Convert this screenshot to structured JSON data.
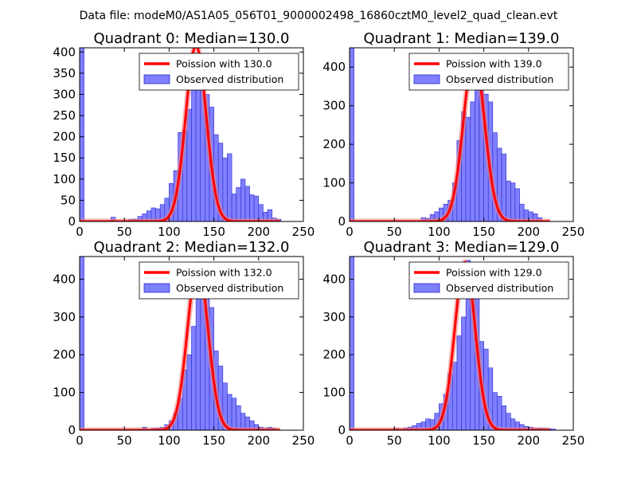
{
  "figure": {
    "suptitle": "Data file: modeM0/AS1A05_056T01_9000002498_16860cztM0_level2_quad_clean.evt"
  },
  "style": {
    "bar_fill": "#7f7fff",
    "bar_edge": "#2a2ad0",
    "poisson_color": "#ff0000",
    "poisson_halo": "#f08080"
  },
  "chart_data": [
    {
      "type": "bar",
      "title": "Quadrant 0: Median=130.0",
      "median": 130.0,
      "xlim": [
        0,
        250
      ],
      "ylim": [
        0,
        410
      ],
      "xticks": [
        0,
        50,
        100,
        150,
        200,
        250
      ],
      "yticks": [
        0,
        50,
        100,
        150,
        200,
        250,
        300,
        350,
        400
      ],
      "bin_width": 5,
      "poisson_peak": 415,
      "legend": [
        "Poission with 130.0",
        "Observed distribution"
      ],
      "bins": [
        {
          "x": 0,
          "v": 410
        },
        {
          "x": 35,
          "v": 10
        },
        {
          "x": 55,
          "v": 5
        },
        {
          "x": 60,
          "v": 6
        },
        {
          "x": 65,
          "v": 12
        },
        {
          "x": 70,
          "v": 18
        },
        {
          "x": 75,
          "v": 25
        },
        {
          "x": 80,
          "v": 32
        },
        {
          "x": 85,
          "v": 30
        },
        {
          "x": 90,
          "v": 40
        },
        {
          "x": 95,
          "v": 55
        },
        {
          "x": 100,
          "v": 90
        },
        {
          "x": 105,
          "v": 120
        },
        {
          "x": 110,
          "v": 210
        },
        {
          "x": 115,
          "v": 215
        },
        {
          "x": 120,
          "v": 265
        },
        {
          "x": 125,
          "v": 310
        },
        {
          "x": 130,
          "v": 365
        },
        {
          "x": 135,
          "v": 340
        },
        {
          "x": 140,
          "v": 300
        },
        {
          "x": 145,
          "v": 270
        },
        {
          "x": 150,
          "v": 205
        },
        {
          "x": 155,
          "v": 185
        },
        {
          "x": 160,
          "v": 150
        },
        {
          "x": 165,
          "v": 160
        },
        {
          "x": 170,
          "v": 65
        },
        {
          "x": 175,
          "v": 80
        },
        {
          "x": 180,
          "v": 100
        },
        {
          "x": 185,
          "v": 83
        },
        {
          "x": 190,
          "v": 63
        },
        {
          "x": 195,
          "v": 60
        },
        {
          "x": 200,
          "v": 40
        },
        {
          "x": 205,
          "v": 22
        },
        {
          "x": 210,
          "v": 28
        },
        {
          "x": 215,
          "v": 8
        },
        {
          "x": 220,
          "v": 5
        }
      ]
    },
    {
      "type": "bar",
      "title": "Quadrant 1: Median=139.0",
      "median": 139.0,
      "xlim": [
        0,
        250
      ],
      "ylim": [
        0,
        450
      ],
      "xticks": [
        0,
        50,
        100,
        150,
        200,
        250
      ],
      "yticks": [
        0,
        100,
        200,
        300,
        400
      ],
      "bin_width": 5,
      "poisson_peak": 430,
      "legend": [
        "Poission with 139.0",
        "Observed distribution"
      ],
      "bins": [
        {
          "x": 0,
          "v": 450
        },
        {
          "x": 80,
          "v": 10
        },
        {
          "x": 85,
          "v": 8
        },
        {
          "x": 90,
          "v": 18
        },
        {
          "x": 95,
          "v": 25
        },
        {
          "x": 100,
          "v": 35
        },
        {
          "x": 105,
          "v": 45
        },
        {
          "x": 110,
          "v": 55
        },
        {
          "x": 115,
          "v": 100
        },
        {
          "x": 120,
          "v": 210
        },
        {
          "x": 125,
          "v": 285
        },
        {
          "x": 130,
          "v": 270
        },
        {
          "x": 135,
          "v": 310
        },
        {
          "x": 140,
          "v": 420
        },
        {
          "x": 145,
          "v": 410
        },
        {
          "x": 150,
          "v": 330
        },
        {
          "x": 155,
          "v": 310
        },
        {
          "x": 160,
          "v": 230
        },
        {
          "x": 165,
          "v": 190
        },
        {
          "x": 170,
          "v": 175
        },
        {
          "x": 175,
          "v": 105
        },
        {
          "x": 180,
          "v": 100
        },
        {
          "x": 185,
          "v": 85
        },
        {
          "x": 190,
          "v": 45
        },
        {
          "x": 195,
          "v": 30
        },
        {
          "x": 200,
          "v": 25
        },
        {
          "x": 205,
          "v": 20
        },
        {
          "x": 210,
          "v": 10
        }
      ]
    },
    {
      "type": "bar",
      "title": "Quadrant 2: Median=132.0",
      "median": 132.0,
      "xlim": [
        0,
        250
      ],
      "ylim": [
        0,
        460
      ],
      "xticks": [
        0,
        50,
        100,
        150,
        200,
        250
      ],
      "yticks": [
        0,
        100,
        200,
        300,
        400
      ],
      "bin_width": 5,
      "poisson_peak": 440,
      "legend": [
        "Poission with 132.0",
        "Observed distribution"
      ],
      "bins": [
        {
          "x": 0,
          "v": 460
        },
        {
          "x": 70,
          "v": 8
        },
        {
          "x": 80,
          "v": 5
        },
        {
          "x": 85,
          "v": 6
        },
        {
          "x": 90,
          "v": 8
        },
        {
          "x": 95,
          "v": 15
        },
        {
          "x": 100,
          "v": 25
        },
        {
          "x": 105,
          "v": 45
        },
        {
          "x": 110,
          "v": 85
        },
        {
          "x": 115,
          "v": 160
        },
        {
          "x": 120,
          "v": 200
        },
        {
          "x": 125,
          "v": 275
        },
        {
          "x": 130,
          "v": 390
        },
        {
          "x": 135,
          "v": 410
        },
        {
          "x": 140,
          "v": 380
        },
        {
          "x": 145,
          "v": 325
        },
        {
          "x": 150,
          "v": 210
        },
        {
          "x": 155,
          "v": 170
        },
        {
          "x": 160,
          "v": 125
        },
        {
          "x": 165,
          "v": 95
        },
        {
          "x": 170,
          "v": 85
        },
        {
          "x": 175,
          "v": 65
        },
        {
          "x": 180,
          "v": 45
        },
        {
          "x": 185,
          "v": 35
        },
        {
          "x": 190,
          "v": 25
        },
        {
          "x": 195,
          "v": 15
        },
        {
          "x": 200,
          "v": 8
        },
        {
          "x": 205,
          "v": 5
        },
        {
          "x": 210,
          "v": 8
        },
        {
          "x": 215,
          "v": 5
        }
      ]
    },
    {
      "type": "bar",
      "title": "Quadrant 3: Median=129.0",
      "median": 129.0,
      "xlim": [
        0,
        250
      ],
      "ylim": [
        0,
        460
      ],
      "xticks": [
        0,
        50,
        100,
        150,
        200,
        250
      ],
      "yticks": [
        0,
        100,
        200,
        300,
        400
      ],
      "bin_width": 5,
      "poisson_peak": 445,
      "legend": [
        "Poission with 129.0",
        "Observed distribution"
      ],
      "bins": [
        {
          "x": 0,
          "v": 460
        },
        {
          "x": 50,
          "v": 5
        },
        {
          "x": 60,
          "v": 6
        },
        {
          "x": 65,
          "v": 8
        },
        {
          "x": 70,
          "v": 12
        },
        {
          "x": 75,
          "v": 18
        },
        {
          "x": 80,
          "v": 22
        },
        {
          "x": 85,
          "v": 30
        },
        {
          "x": 90,
          "v": 28
        },
        {
          "x": 95,
          "v": 45
        },
        {
          "x": 100,
          "v": 70
        },
        {
          "x": 105,
          "v": 95
        },
        {
          "x": 110,
          "v": 150
        },
        {
          "x": 115,
          "v": 180
        },
        {
          "x": 120,
          "v": 250
        },
        {
          "x": 125,
          "v": 300
        },
        {
          "x": 130,
          "v": 450
        },
        {
          "x": 135,
          "v": 430
        },
        {
          "x": 140,
          "v": 360
        },
        {
          "x": 145,
          "v": 235
        },
        {
          "x": 150,
          "v": 215
        },
        {
          "x": 155,
          "v": 165
        },
        {
          "x": 160,
          "v": 100
        },
        {
          "x": 165,
          "v": 90
        },
        {
          "x": 170,
          "v": 65
        },
        {
          "x": 175,
          "v": 45
        },
        {
          "x": 180,
          "v": 30
        },
        {
          "x": 185,
          "v": 22
        },
        {
          "x": 190,
          "v": 15
        },
        {
          "x": 195,
          "v": 10
        },
        {
          "x": 200,
          "v": 8
        },
        {
          "x": 205,
          "v": 5
        },
        {
          "x": 210,
          "v": 6
        },
        {
          "x": 215,
          "v": 5
        },
        {
          "x": 220,
          "v": 4
        },
        {
          "x": 225,
          "v": 3
        }
      ]
    }
  ]
}
